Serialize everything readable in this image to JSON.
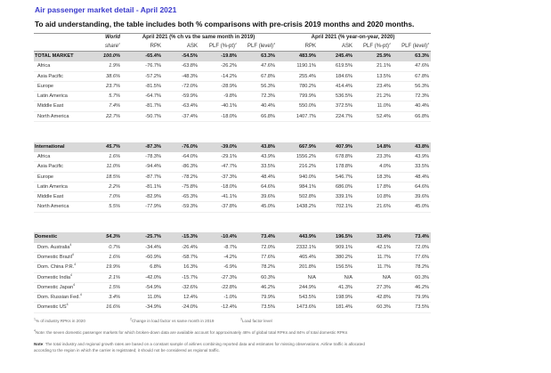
{
  "title": "Air passenger market detail - April 2021",
  "subtitle": "To aid understanding, the table includes both % comparisons with pre-crisis 2019 months and 2020 months.",
  "header": {
    "world_share_1": "World",
    "world_share_2": "share",
    "group_2019": "April 2021 (% ch vs the same month in 2019)",
    "group_2020": "April 2021 (% year-on-year, 2020)",
    "rpk": "RPK",
    "ask": "ASK",
    "plf_pt": "PLF (%-pt)",
    "plf_level": "PLF (level)",
    "sup1": "1",
    "sup2": "2",
    "sup3": "3"
  },
  "sections": [
    {
      "rows": [
        {
          "name": "TOTAL MARKET",
          "section": true,
          "cells": [
            "100.0%",
            "-65.4%",
            "-54.5%",
            "-19.8%",
            "63.3%",
            "483.9%",
            "245.4%",
            "25.9%",
            "63.3%"
          ]
        },
        {
          "name": "Africa",
          "cells": [
            "1.9%",
            "-76.7%",
            "-63.8%",
            "-26.2%",
            "47.6%",
            "1190.1%",
            "619.5%",
            "21.1%",
            "47.6%"
          ]
        },
        {
          "name": "Asia Pacific",
          "cells": [
            "38.6%",
            "-57.2%",
            "-48.3%",
            "-14.2%",
            "67.8%",
            "255.4%",
            "184.6%",
            "13.5%",
            "67.8%"
          ]
        },
        {
          "name": "Europe",
          "cells": [
            "23.7%",
            "-81.5%",
            "-72.0%",
            "-28.9%",
            "56.3%",
            "780.2%",
            "414.4%",
            "23.4%",
            "56.3%"
          ]
        },
        {
          "name": "Latin America",
          "cells": [
            "5.7%",
            "-64.7%",
            "-59.9%",
            "-9.8%",
            "72.3%",
            "799.9%",
            "536.5%",
            "21.2%",
            "72.3%"
          ]
        },
        {
          "name": "Middle East",
          "cells": [
            "7.4%",
            "-81.7%",
            "-63.4%",
            "-40.1%",
            "40.4%",
            "550.0%",
            "372.5%",
            "11.0%",
            "40.4%"
          ]
        },
        {
          "name": "North America",
          "cells": [
            "22.7%",
            "-50.7%",
            "-37.4%",
            "-18.0%",
            "66.8%",
            "1407.7%",
            "224.7%",
            "52.4%",
            "66.8%"
          ]
        }
      ]
    },
    {
      "rows": [
        {
          "name": "International",
          "section": true,
          "cells": [
            "45.7%",
            "-87.3%",
            "-76.0%",
            "-39.0%",
            "43.8%",
            "667.9%",
            "407.9%",
            "14.8%",
            "43.8%"
          ]
        },
        {
          "name": "Africa",
          "cells": [
            "1.6%",
            "-78.3%",
            "-64.0%",
            "-29.1%",
            "43.9%",
            "1556.2%",
            "678.8%",
            "23.3%",
            "43.9%"
          ]
        },
        {
          "name": "Asia Pacific",
          "cells": [
            "11.0%",
            "-94.4%",
            "-86.3%",
            "-47.7%",
            "33.5%",
            "216.2%",
            "178.8%",
            "4.0%",
            "33.5%"
          ]
        },
        {
          "name": "Europe",
          "cells": [
            "18.5%",
            "-87.7%",
            "-78.2%",
            "-37.3%",
            "48.4%",
            "940.0%",
            "546.7%",
            "18.3%",
            "48.4%"
          ]
        },
        {
          "name": "Latin America",
          "cells": [
            "2.2%",
            "-81.1%",
            "-75.8%",
            "-18.0%",
            "64.6%",
            "984.1%",
            "686.0%",
            "17.8%",
            "64.6%"
          ]
        },
        {
          "name": "Middle East",
          "cells": [
            "7.0%",
            "-82.9%",
            "-65.3%",
            "-41.1%",
            "39.6%",
            "502.8%",
            "339.1%",
            "10.8%",
            "39.6%"
          ]
        },
        {
          "name": "North America",
          "cells": [
            "5.5%",
            "-77.9%",
            "-59.3%",
            "-37.8%",
            "45.0%",
            "1438.2%",
            "702.1%",
            "21.6%",
            "45.0%"
          ]
        }
      ]
    },
    {
      "rows": [
        {
          "name": "Domestic",
          "section": true,
          "cells": [
            "54.3%",
            "-25.7%",
            "-15.3%",
            "-10.4%",
            "73.4%",
            "443.9%",
            "196.5%",
            "33.4%",
            "73.4%"
          ]
        },
        {
          "name": "Dom. Australia",
          "sup": "4",
          "cells": [
            "0.7%",
            "-34.4%",
            "-26.4%",
            "-8.7%",
            "72.0%",
            "2332.1%",
            "909.1%",
            "42.1%",
            "72.0%"
          ]
        },
        {
          "name": "Domestic Brazil",
          "sup": "4",
          "cells": [
            "1.6%",
            "-60.9%",
            "-58.7%",
            "-4.2%",
            "77.6%",
            "465.4%",
            "380.2%",
            "11.7%",
            "77.6%"
          ]
        },
        {
          "name": "Dom. China P.R.",
          "sup": "4",
          "cells": [
            "19.9%",
            "6.8%",
            "16.3%",
            "-6.9%",
            "78.2%",
            "201.8%",
            "156.5%",
            "11.7%",
            "78.2%"
          ]
        },
        {
          "name": "Domestic India",
          "sup": "4",
          "cells": [
            "2.1%",
            "-42.0%",
            "-15.7%",
            "-27.3%",
            "60.3%",
            "N/A",
            "N/A",
            "N/A",
            "60.3%"
          ]
        },
        {
          "name": "Domestic Japan",
          "sup": "4",
          "cells": [
            "1.5%",
            "-54.9%",
            "-32.6%",
            "-22.8%",
            "46.2%",
            "244.9%",
            "41.3%",
            "27.3%",
            "46.2%"
          ]
        },
        {
          "name": "Dom. Russian Fed.",
          "sup": "4",
          "cells": [
            "3.4%",
            "11.0%",
            "12.4%",
            "-1.0%",
            "79.9%",
            "543.5%",
            "198.9%",
            "42.8%",
            "79.9%"
          ]
        },
        {
          "name": "Domestic US",
          "sup": "4",
          "cells": [
            "16.6%",
            "-34.9%",
            "-24.0%",
            "-12.4%",
            "73.5%",
            "1473.6%",
            "181.4%",
            "60.3%",
            "73.5%"
          ]
        }
      ]
    }
  ],
  "footnotes": {
    "f1_sup": "1",
    "f1": "% of industry RPKs in 2020",
    "f2_sup": "2",
    "f2": "Change in load factor vs same month in 2019",
    "f3_sup": "3",
    "f3": "Load factor level",
    "f4_sup": "4",
    "f4": "Note: the seven domestic passenger markets for which broken-down data are available account for approximately 46% of global total RPKs and 84% of total domestic RPKs",
    "note_label": "Note",
    "note_line1": ": The total industry and regional growth rates are based on a constant sample of airlines combining reported data and estimates for missing observations. Airline traffic is allocated",
    "note_line2": "according to the region in which the carrier is registrated; it should not be considered as regional traffic."
  }
}
